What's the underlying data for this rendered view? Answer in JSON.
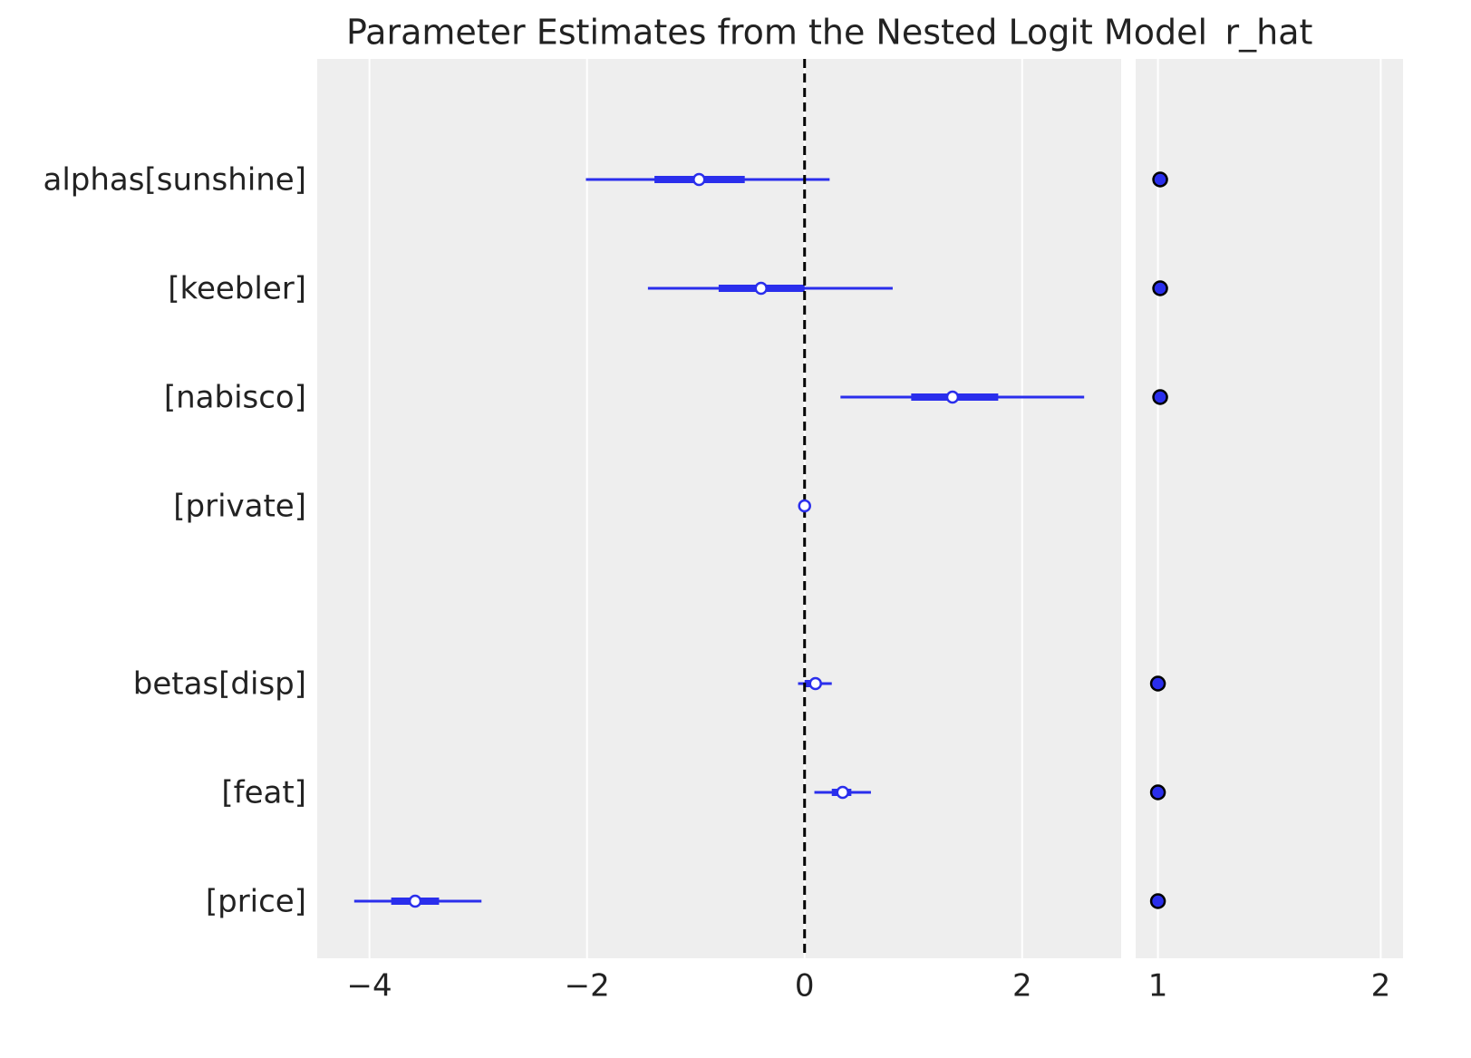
{
  "chart_data": {
    "type": "forest",
    "title": "Parameter Estimates from the Nested Logit Model",
    "r_hat_title": "r_hat",
    "color": "#2a2eec",
    "ref_line": 0,
    "xlim": [
      -4.48,
      2.91
    ],
    "xticks": [
      {
        "value": -4,
        "label": "−4"
      },
      {
        "value": -2,
        "label": "−2"
      },
      0,
      2
    ],
    "r_hat_xlim": [
      0.9,
      2.1
    ],
    "r_hat_xticks": [
      1,
      2
    ],
    "grid": true,
    "groups": [
      {
        "rows": [
          {
            "label": "alphas[sunshine]",
            "median": -0.97,
            "hdi_inner": [
              -1.38,
              -0.55
            ],
            "hdi_outer": [
              -2.01,
              0.23
            ],
            "r_hat": 1.01
          },
          {
            "label": "[keebler]",
            "median": -0.4,
            "hdi_inner": [
              -0.79,
              0.0
            ],
            "hdi_outer": [
              -1.44,
              0.81
            ],
            "r_hat": 1.01
          },
          {
            "label": "[nabisco]",
            "median": 1.36,
            "hdi_inner": [
              0.98,
              1.78
            ],
            "hdi_outer": [
              0.33,
              2.57
            ],
            "r_hat": 1.01
          },
          {
            "label": "[private]",
            "median": 0,
            "hdi_inner": null,
            "hdi_outer": null,
            "r_hat": null
          }
        ]
      },
      {
        "rows": [
          {
            "label": "betas[disp]",
            "median": 0.1,
            "hdi_inner": [
              0.0,
              0.14
            ],
            "hdi_outer": [
              -0.06,
              0.25
            ],
            "r_hat": 1.0
          },
          {
            "label": "[feat]",
            "median": 0.35,
            "hdi_inner": [
              0.25,
              0.43
            ],
            "hdi_outer": [
              0.09,
              0.61
            ],
            "r_hat": 1.0
          },
          {
            "label": "[price]",
            "median": -3.58,
            "hdi_inner": [
              -3.8,
              -3.36
            ],
            "hdi_outer": [
              -4.14,
              -2.97
            ],
            "r_hat": 1.0
          }
        ]
      }
    ]
  }
}
